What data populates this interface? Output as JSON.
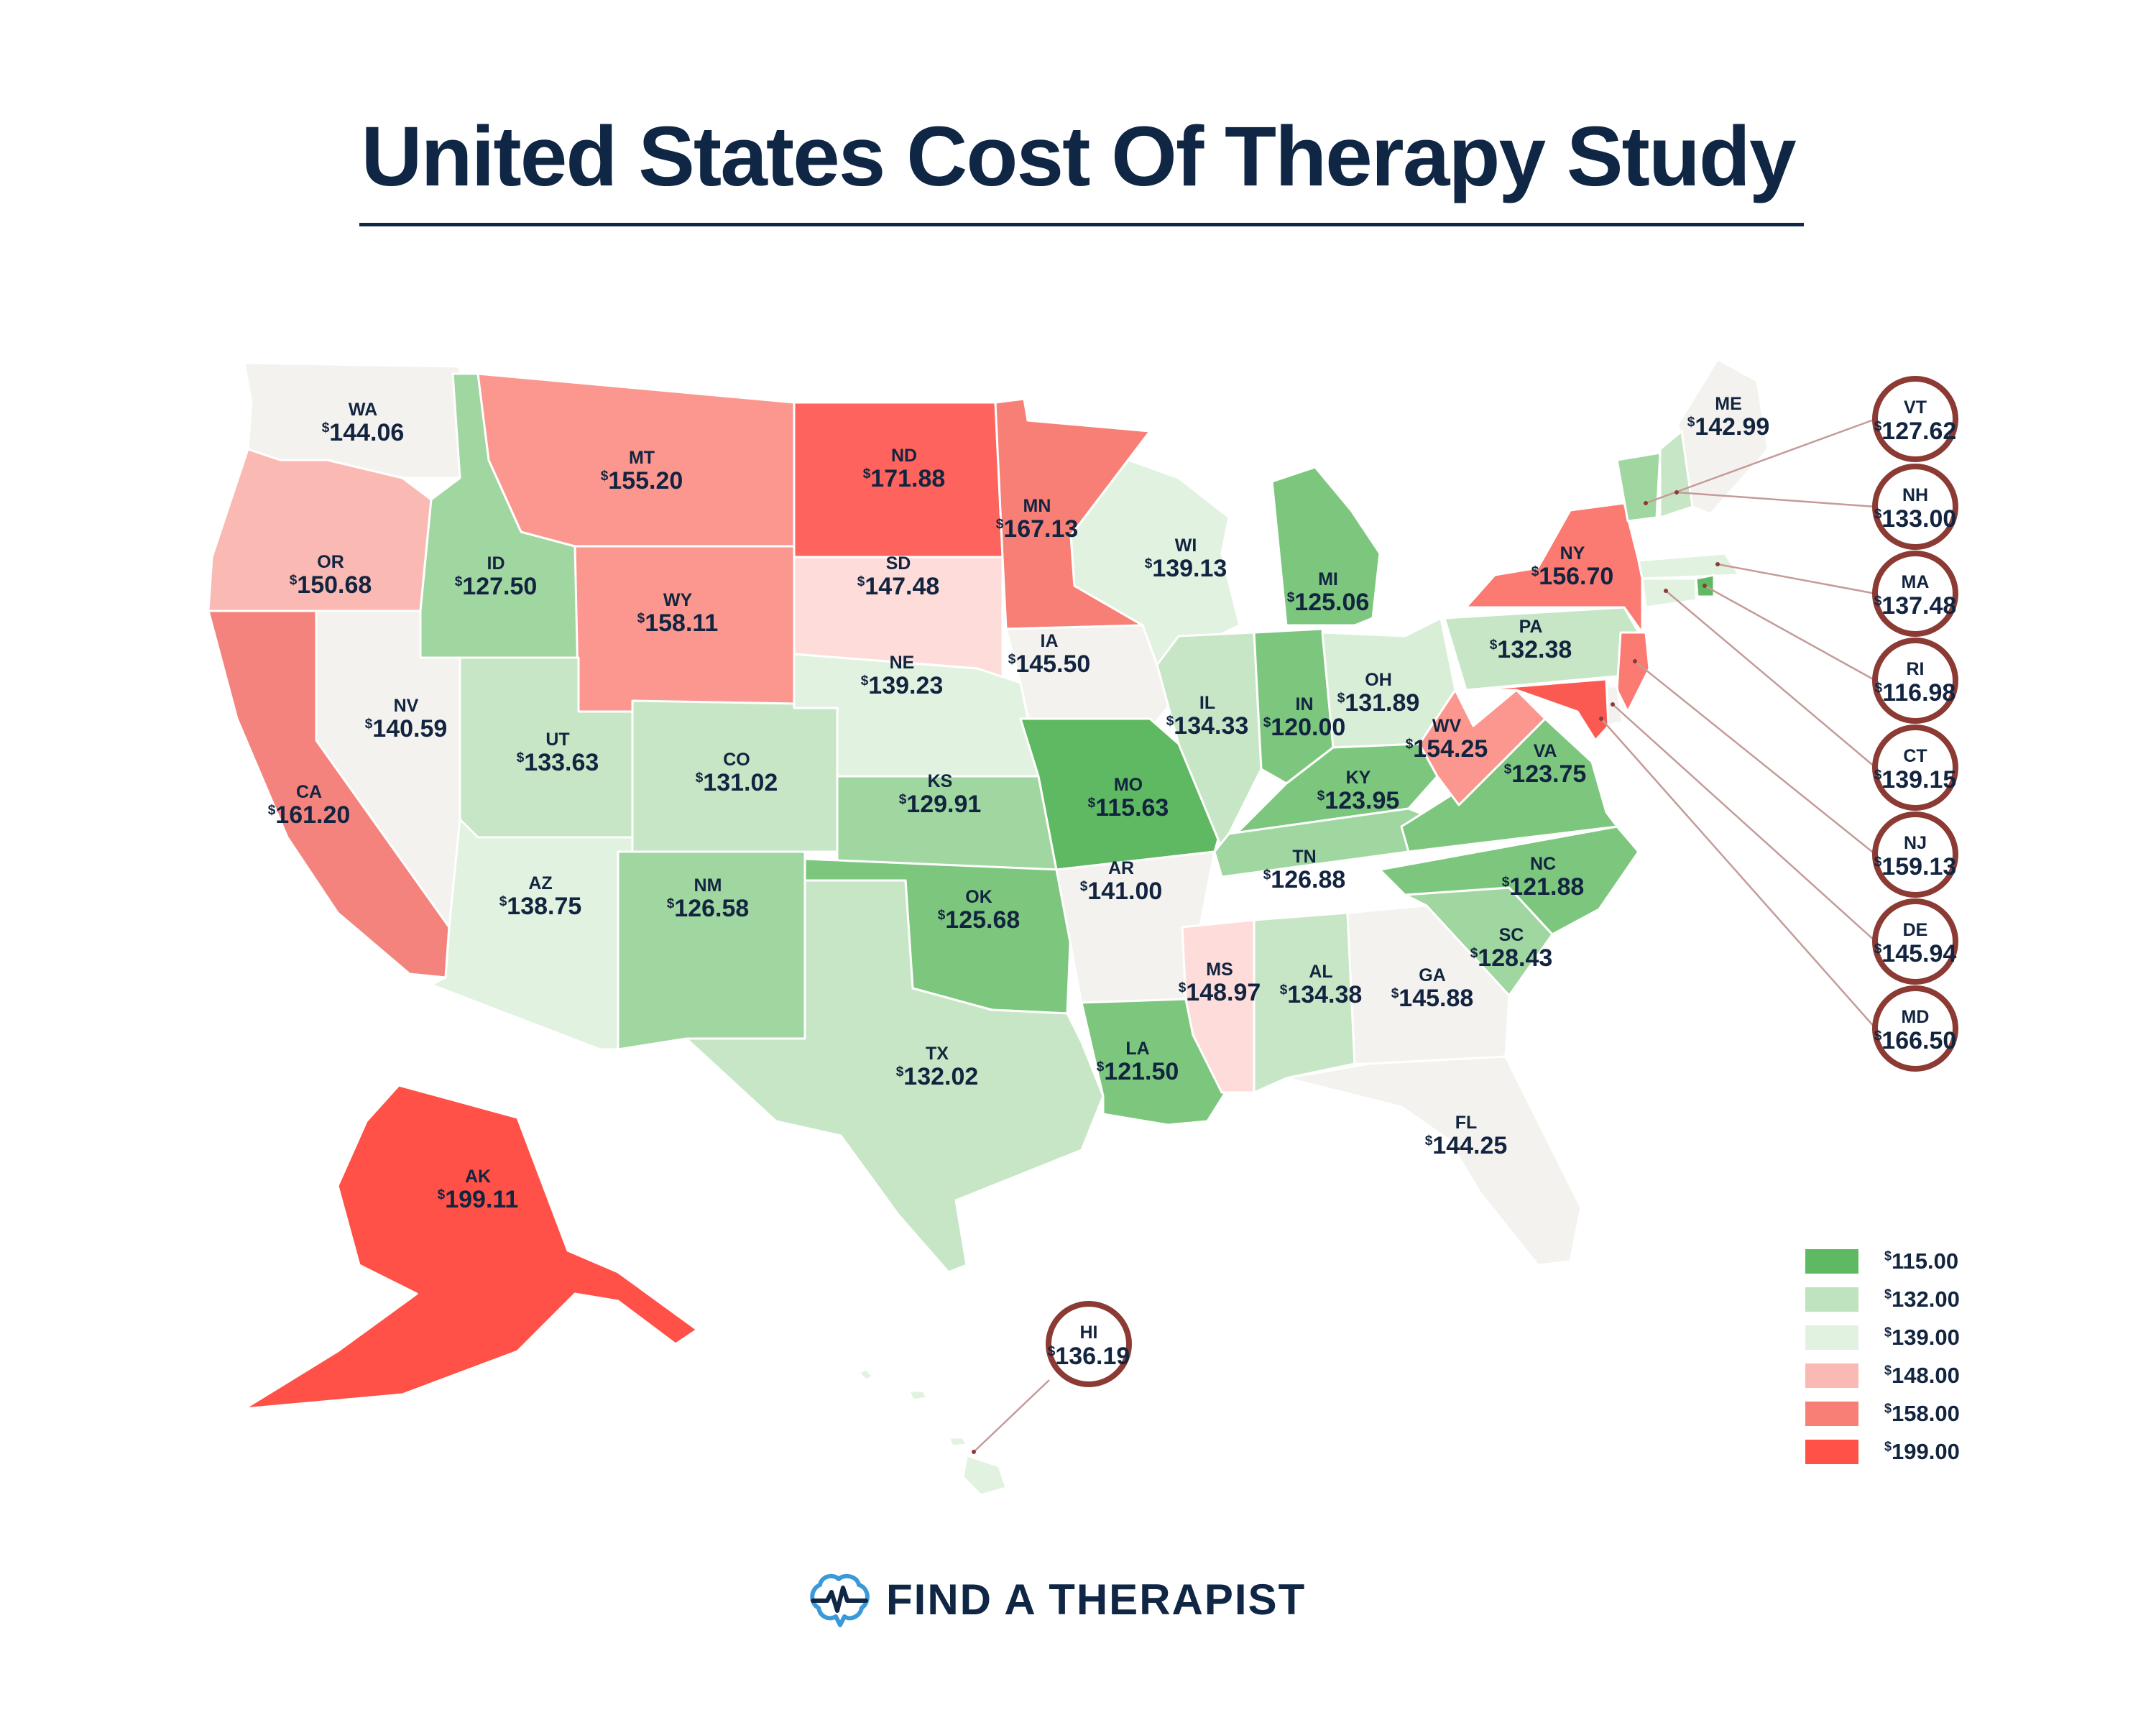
{
  "title": "United States Cost Of Therapy Study",
  "brand": {
    "name": "FIND A THERAPIST",
    "icon": "brain-heartbeat-icon"
  },
  "currency_symbol": "$",
  "legend": {
    "items": [
      {
        "label": "115.00",
        "color": "#5fb962"
      },
      {
        "label": "132.00",
        "color": "#bfe3bf"
      },
      {
        "label": "139.00",
        "color": "#e2f2e1"
      },
      {
        "label": "148.00",
        "color": "#fbb9b4"
      },
      {
        "label": "158.00",
        "color": "#f77f76"
      },
      {
        "label": "199.00",
        "color": "#ff5147"
      }
    ]
  },
  "states": [
    {
      "abbr": "WA",
      "value": "144.06",
      "color": "#f4f2ee"
    },
    {
      "abbr": "OR",
      "value": "150.68",
      "color": "#fbb9b4"
    },
    {
      "abbr": "CA",
      "value": "161.20",
      "color": "#f4837d"
    },
    {
      "abbr": "NV",
      "value": "140.59",
      "color": "#f4f2ee"
    },
    {
      "abbr": "ID",
      "value": "127.50",
      "color": "#a0d6a0"
    },
    {
      "abbr": "MT",
      "value": "155.20",
      "color": "#fb978f"
    },
    {
      "abbr": "WY",
      "value": "158.11",
      "color": "#fb978f"
    },
    {
      "abbr": "UT",
      "value": "133.63",
      "color": "#c7e6c6"
    },
    {
      "abbr": "AZ",
      "value": "138.75",
      "color": "#e2f2e1"
    },
    {
      "abbr": "CO",
      "value": "131.02",
      "color": "#c7e6c6"
    },
    {
      "abbr": "NM",
      "value": "126.58",
      "color": "#a0d6a0"
    },
    {
      "abbr": "ND",
      "value": "171.88",
      "color": "#fe635d"
    },
    {
      "abbr": "SD",
      "value": "147.48",
      "color": "#fddcda"
    },
    {
      "abbr": "NE",
      "value": "139.23",
      "color": "#e2f2e1"
    },
    {
      "abbr": "KS",
      "value": "129.91",
      "color": "#a0d6a0"
    },
    {
      "abbr": "OK",
      "value": "125.68",
      "color": "#7cc77d"
    },
    {
      "abbr": "TX",
      "value": "132.02",
      "color": "#c7e6c6"
    },
    {
      "abbr": "MN",
      "value": "167.13",
      "color": "#f77f76"
    },
    {
      "abbr": "IA",
      "value": "145.50",
      "color": "#f4f2ee"
    },
    {
      "abbr": "MO",
      "value": "115.63",
      "color": "#5fb962"
    },
    {
      "abbr": "AR",
      "value": "141.00",
      "color": "#f4f2ee"
    },
    {
      "abbr": "LA",
      "value": "121.50",
      "color": "#7cc77d"
    },
    {
      "abbr": "WI",
      "value": "139.13",
      "color": "#e2f2e1"
    },
    {
      "abbr": "IL",
      "value": "134.33",
      "color": "#c7e6c6"
    },
    {
      "abbr": "MI",
      "value": "125.06",
      "color": "#7cc77d"
    },
    {
      "abbr": "IN",
      "value": "120.00",
      "color": "#7cc77d"
    },
    {
      "abbr": "OH",
      "value": "131.89",
      "color": "#d8eed7"
    },
    {
      "abbr": "KY",
      "value": "123.95",
      "color": "#7cc77d"
    },
    {
      "abbr": "TN",
      "value": "126.88",
      "color": "#a0d6a0"
    },
    {
      "abbr": "MS",
      "value": "148.97",
      "color": "#fddcda"
    },
    {
      "abbr": "AL",
      "value": "134.38",
      "color": "#c7e6c6"
    },
    {
      "abbr": "GA",
      "value": "145.88",
      "color": "#f4f2ee"
    },
    {
      "abbr": "FL",
      "value": "144.25",
      "color": "#f4f2ee"
    },
    {
      "abbr": "SC",
      "value": "128.43",
      "color": "#a0d6a0"
    },
    {
      "abbr": "NC",
      "value": "121.88",
      "color": "#7cc77d"
    },
    {
      "abbr": "VA",
      "value": "123.75",
      "color": "#7cc77d"
    },
    {
      "abbr": "WV",
      "value": "154.25",
      "color": "#fb978f"
    },
    {
      "abbr": "PA",
      "value": "132.38",
      "color": "#c7e6c6"
    },
    {
      "abbr": "NY",
      "value": "156.70",
      "color": "#fb7a71"
    },
    {
      "abbr": "ME",
      "value": "142.99",
      "color": "#f4f2ee"
    },
    {
      "abbr": "AK",
      "value": "199.11",
      "color": "#ff5147"
    },
    {
      "abbr": "HI",
      "value": "136.19",
      "color": "#e2f2e1"
    },
    {
      "abbr": "VT",
      "value": "127.62",
      "color": "#a0d6a0"
    },
    {
      "abbr": "NH",
      "value": "133.00",
      "color": "#c7e6c6"
    },
    {
      "abbr": "MA",
      "value": "137.48",
      "color": "#e2f2e1"
    },
    {
      "abbr": "RI",
      "value": "116.98",
      "color": "#5fb962"
    },
    {
      "abbr": "CT",
      "value": "139.15",
      "color": "#e2f2e1"
    },
    {
      "abbr": "NJ",
      "value": "159.13",
      "color": "#fb7a71"
    },
    {
      "abbr": "DE",
      "value": "145.94",
      "color": "#f4f2ee"
    },
    {
      "abbr": "MD",
      "value": "166.50",
      "color": "#fb5a52"
    }
  ]
}
